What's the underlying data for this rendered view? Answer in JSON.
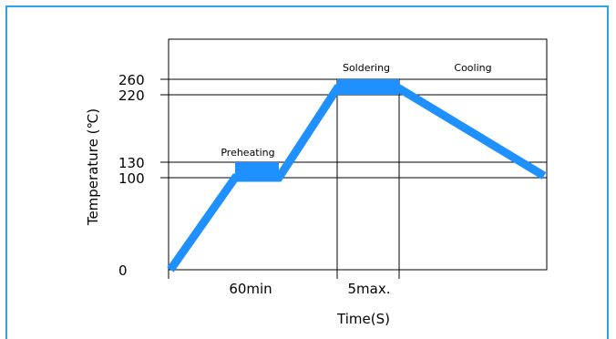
{
  "chart_data": {
    "type": "line",
    "title": "",
    "xlabel": "Time(S)",
    "ylabel": "Temperature (℃)",
    "ylim": [
      0,
      260
    ],
    "yticks": [
      0,
      100,
      130,
      220,
      260
    ],
    "x_phase_labels": [
      "60min",
      "5max."
    ],
    "region_labels": [
      "Preheating",
      "Soldering",
      "Cooling"
    ],
    "profile": [
      {
        "phase": "start",
        "temperature": 0
      },
      {
        "phase": "preheating-start",
        "temperature": 100
      },
      {
        "phase": "preheating-end",
        "temperature": 100
      },
      {
        "phase": "soldering-start",
        "temperature": 220
      },
      {
        "phase": "soldering-end",
        "temperature": 220
      },
      {
        "phase": "cooling-end",
        "temperature": 100
      }
    ],
    "bands": [
      {
        "name": "Preheating",
        "from": 100,
        "to": 130
      },
      {
        "name": "Soldering",
        "from": 220,
        "to": 260
      }
    ],
    "line_color": "#1e90ff"
  }
}
